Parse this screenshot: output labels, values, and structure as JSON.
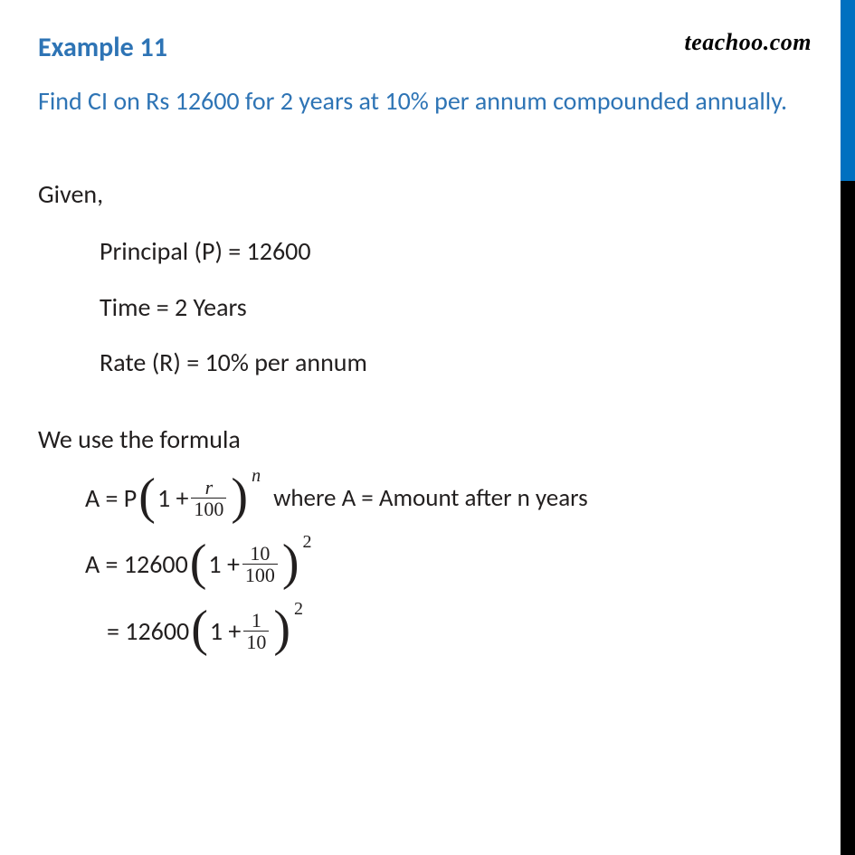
{
  "watermark": "teachoo.com",
  "title": "Example 11",
  "question": "Find CI on Rs 12600 for 2 years at 10% per annum compounded annually.",
  "given_label": "Given,",
  "given": {
    "principal": "Principal (P) = 12600",
    "time": "Time = 2 Years",
    "rate": "Rate (R) = 10% per annum"
  },
  "formula_intro": "We use the formula",
  "formula": {
    "lhs": "A = P ",
    "inner_prefix": "1 + ",
    "frac_num": "r",
    "frac_den": "100",
    "exp": "n",
    "where": "where A = Amount after n years"
  },
  "step2": {
    "lhs": "A = 12600 ",
    "inner_prefix": "1 + ",
    "frac_num": "10",
    "frac_den": "100",
    "exp": "2"
  },
  "step3": {
    "lhs": "= 12600 ",
    "inner_prefix": "1 + ",
    "frac_num": "1",
    "frac_den": "10",
    "exp": "2"
  },
  "colors": {
    "heading": "#2e74b5",
    "body": "#221f1f",
    "sidebar_top": "#0070c0",
    "sidebar_bottom": "#000000",
    "background": "#ffffff"
  },
  "fonts": {
    "body_size_pt": 21,
    "heading_size_pt": 22,
    "math_family": "Cambria Math"
  }
}
